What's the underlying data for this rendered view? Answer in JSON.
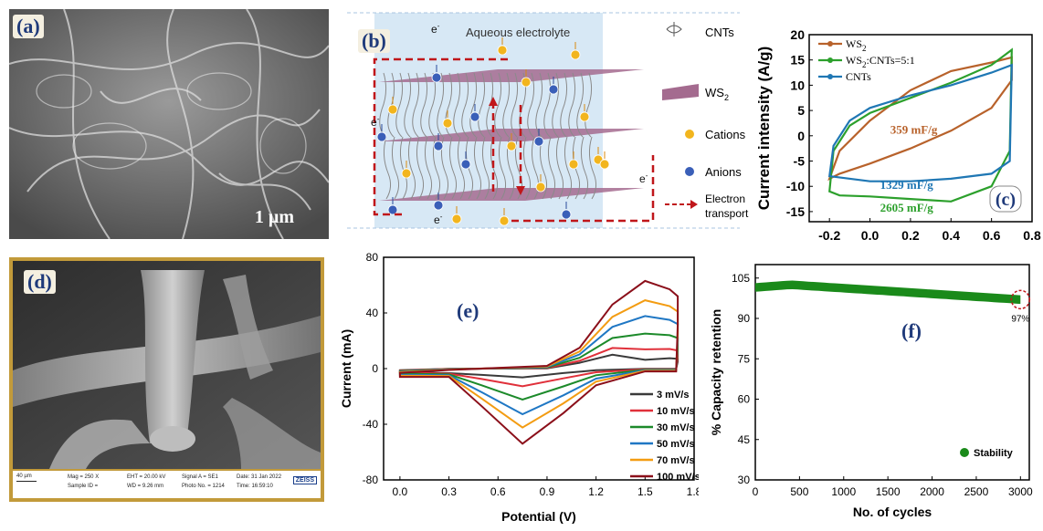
{
  "panels": {
    "a": {
      "label": "(a)",
      "scale": "1 µm"
    },
    "b": {
      "label": "(b)",
      "electrolyte": "Aqueous electrolyte",
      "electron": "e",
      "electron_sup": "-",
      "legend": [
        {
          "key": "cnt",
          "text": "CNTs"
        },
        {
          "key": "ws2",
          "text": "WS",
          "sub": "2"
        },
        {
          "key": "cation",
          "text": "Cations"
        },
        {
          "key": "anion",
          "text": "Anions"
        },
        {
          "key": "transport",
          "text": "Electron",
          "text2": "transport"
        }
      ],
      "colors": {
        "cation": "#f2b51e",
        "anion": "#3a5fb8",
        "sheet": "#a46b8f",
        "arrow": "#c0161a"
      }
    },
    "c": {
      "label": "(c)"
    },
    "d": {
      "label": "(d)",
      "info": {
        "scalebar": "40 µm",
        "mag": "Mag = 250 X",
        "sample": "Sample ID =",
        "eht": "EHT = 20.00 kV",
        "wd": "WD = 9.26 mm",
        "signal": "Signal A = SE1",
        "photo": "Photo No. = 1214",
        "date": "Date: 31 Jan 2022",
        "time": "Time: 16:59:10",
        "brand": "ZEISS"
      }
    },
    "e": {
      "label": "(e)"
    },
    "f": {
      "label": "(f)",
      "note": "97%"
    }
  },
  "chart_data": [
    {
      "id": "c",
      "type": "line",
      "ylabel": "Current intensity (A/g)",
      "xlabel": "",
      "xlim": [
        -0.3,
        0.8
      ],
      "ylim": [
        -17,
        20
      ],
      "xticks": [
        -0.2,
        0.0,
        0.2,
        0.4,
        0.6,
        0.8
      ],
      "xtick_labels": [
        "-0.2",
        "0.0",
        "0.2",
        "0.4",
        "0.6",
        "0.8"
      ],
      "yticks": [
        -15,
        -10,
        -5,
        0,
        5,
        10,
        15,
        20
      ],
      "legend_position": "top-left",
      "series": [
        {
          "name": "WS",
          "name_sub": "2",
          "color": "#b8622b",
          "upper": [
            [
              -0.2,
              -8.5
            ],
            [
              -0.15,
              -3
            ],
            [
              0.0,
              3
            ],
            [
              0.2,
              9
            ],
            [
              0.4,
              12.8
            ],
            [
              0.6,
              14.5
            ],
            [
              0.7,
              15.5
            ]
          ],
          "lower": [
            [
              0.7,
              15.5
            ],
            [
              0.7,
              11
            ],
            [
              0.6,
              5.5
            ],
            [
              0.4,
              1
            ],
            [
              0.2,
              -2.5
            ],
            [
              0.0,
              -5.5
            ],
            [
              -0.15,
              -7.5
            ],
            [
              -0.2,
              -8.5
            ]
          ]
        },
        {
          "name": "WS",
          "name_sub": "2",
          "name_suffix": ":CNTs=5:1",
          "color": "#2ca02c",
          "upper": [
            [
              -0.2,
              -11
            ],
            [
              -0.18,
              -3
            ],
            [
              -0.1,
              2
            ],
            [
              0.0,
              4.5
            ],
            [
              0.2,
              7.5
            ],
            [
              0.4,
              10.5
            ],
            [
              0.6,
              14
            ],
            [
              0.7,
              17
            ]
          ],
          "lower": [
            [
              0.7,
              17
            ],
            [
              0.69,
              -3
            ],
            [
              0.6,
              -10
            ],
            [
              0.4,
              -13
            ],
            [
              0.2,
              -12.5
            ],
            [
              0.0,
              -12
            ],
            [
              -0.15,
              -11.8
            ],
            [
              -0.2,
              -11
            ]
          ]
        },
        {
          "name": "CNTs",
          "color": "#1f77b4",
          "upper": [
            [
              -0.2,
              -8
            ],
            [
              -0.18,
              -2
            ],
            [
              -0.1,
              3
            ],
            [
              0.0,
              5.5
            ],
            [
              0.2,
              8
            ],
            [
              0.4,
              10
            ],
            [
              0.6,
              12.5
            ],
            [
              0.7,
              14
            ]
          ],
          "lower": [
            [
              0.7,
              14
            ],
            [
              0.69,
              -5
            ],
            [
              0.6,
              -7.5
            ],
            [
              0.4,
              -8.5
            ],
            [
              0.2,
              -9
            ],
            [
              0.0,
              -9
            ],
            [
              -0.2,
              -8
            ]
          ]
        }
      ],
      "annotations": [
        {
          "text": "359 mF/g",
          "x": 0.1,
          "y": 0.4,
          "color": "#b8622b"
        },
        {
          "text": "1329 mF/g",
          "x": 0.05,
          "y": -10.5,
          "color": "#1f77b4"
        },
        {
          "text": "2605 mF/g",
          "x": 0.05,
          "y": -15,
          "color": "#2ca02c"
        }
      ]
    },
    {
      "id": "e",
      "type": "line",
      "xlabel": "Potential (V)",
      "ylabel": "Current (mA)",
      "xlim": [
        -0.1,
        1.8
      ],
      "ylim": [
        -80,
        80
      ],
      "xticks": [
        0.0,
        0.3,
        0.6,
        0.9,
        1.2,
        1.5,
        1.8
      ],
      "xtick_labels": [
        "0.0",
        "0.3",
        "0.6",
        "0.9",
        "1.2",
        "1.5",
        "1.8"
      ],
      "yticks": [
        -80,
        -40,
        0,
        40,
        80
      ],
      "legend_position": "bottom-right",
      "series": [
        {
          "name": "3 mV/s",
          "color": "#3a3a3a",
          "amp": 0.1
        },
        {
          "name": "10 mV/s",
          "color": "#e0303a",
          "amp": 0.22
        },
        {
          "name": "30 mV/s",
          "color": "#1c8a2a",
          "amp": 0.4
        },
        {
          "name": "50 mV/s",
          "color": "#1f77c4",
          "amp": 0.6
        },
        {
          "name": "70 mV/s",
          "color": "#f39c12",
          "amp": 0.78
        },
        {
          "name": "100 mV/s",
          "color": "#8b0f1a",
          "amp": 1.0
        }
      ]
    },
    {
      "id": "f",
      "type": "scatter",
      "xlabel": "No. of cycles",
      "ylabel": "% Capacity retention",
      "xlim": [
        0,
        3100
      ],
      "ylim": [
        30,
        110
      ],
      "xticks": [
        0,
        500,
        1000,
        1500,
        2000,
        2500,
        3000
      ],
      "yticks": [
        30,
        45,
        60,
        75,
        90,
        105
      ],
      "series": [
        {
          "name": "Stability",
          "color": "#1a8a1a",
          "start": 101.5,
          "peak": 102.5,
          "end": 97
        }
      ],
      "legend_position": "bottom-right"
    }
  ]
}
